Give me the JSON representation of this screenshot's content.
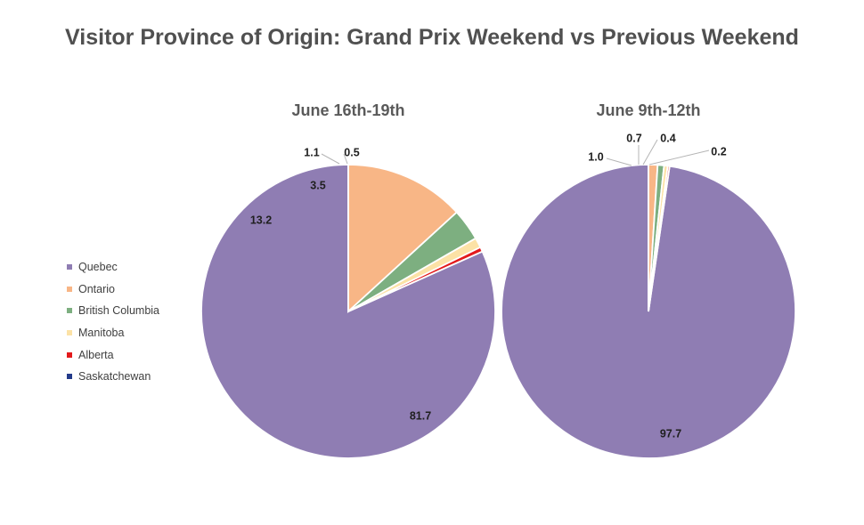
{
  "title": "Visitor Province of Origin: Grand Prix Weekend vs Previous Weekend",
  "legend": [
    {
      "label": "Quebec",
      "color": "#8F7DB3"
    },
    {
      "label": "Ontario",
      "color": "#F8B686"
    },
    {
      "label": "British Columbia",
      "color": "#7DAF80"
    },
    {
      "label": "Manitoba",
      "color": "#FCE2A6"
    },
    {
      "label": "Alberta",
      "color": "#E31A1C"
    },
    {
      "label": "Saskatchewan",
      "color": "#243B8A"
    }
  ],
  "chart_data": [
    {
      "type": "pie",
      "title": "June 16th-19th",
      "slices": [
        {
          "label": "Quebec",
          "value": 81.7,
          "display": "81.7"
        },
        {
          "label": "Ontario",
          "value": 13.2,
          "display": "13.2"
        },
        {
          "label": "British Columbia",
          "value": 3.5,
          "display": "3.5"
        },
        {
          "label": "Manitoba",
          "value": 1.1,
          "display": "1.1"
        },
        {
          "label": "Alberta",
          "value": 0.5,
          "display": "0.5"
        },
        {
          "label": "Saskatchewan",
          "value": 0,
          "display": ""
        }
      ]
    },
    {
      "type": "pie",
      "title": "June 9th-12th",
      "slices": [
        {
          "label": "Quebec",
          "value": 97.7,
          "display": "97.7"
        },
        {
          "label": "Ontario",
          "value": 1.0,
          "display": "1.0"
        },
        {
          "label": "British Columbia",
          "value": 0.7,
          "display": "0.7"
        },
        {
          "label": "Manitoba",
          "value": 0.4,
          "display": "0.4"
        },
        {
          "label": "Alberta",
          "value": 0.2,
          "display": "0.2"
        },
        {
          "label": "Saskatchewan",
          "value": 0,
          "display": ""
        }
      ]
    }
  ]
}
